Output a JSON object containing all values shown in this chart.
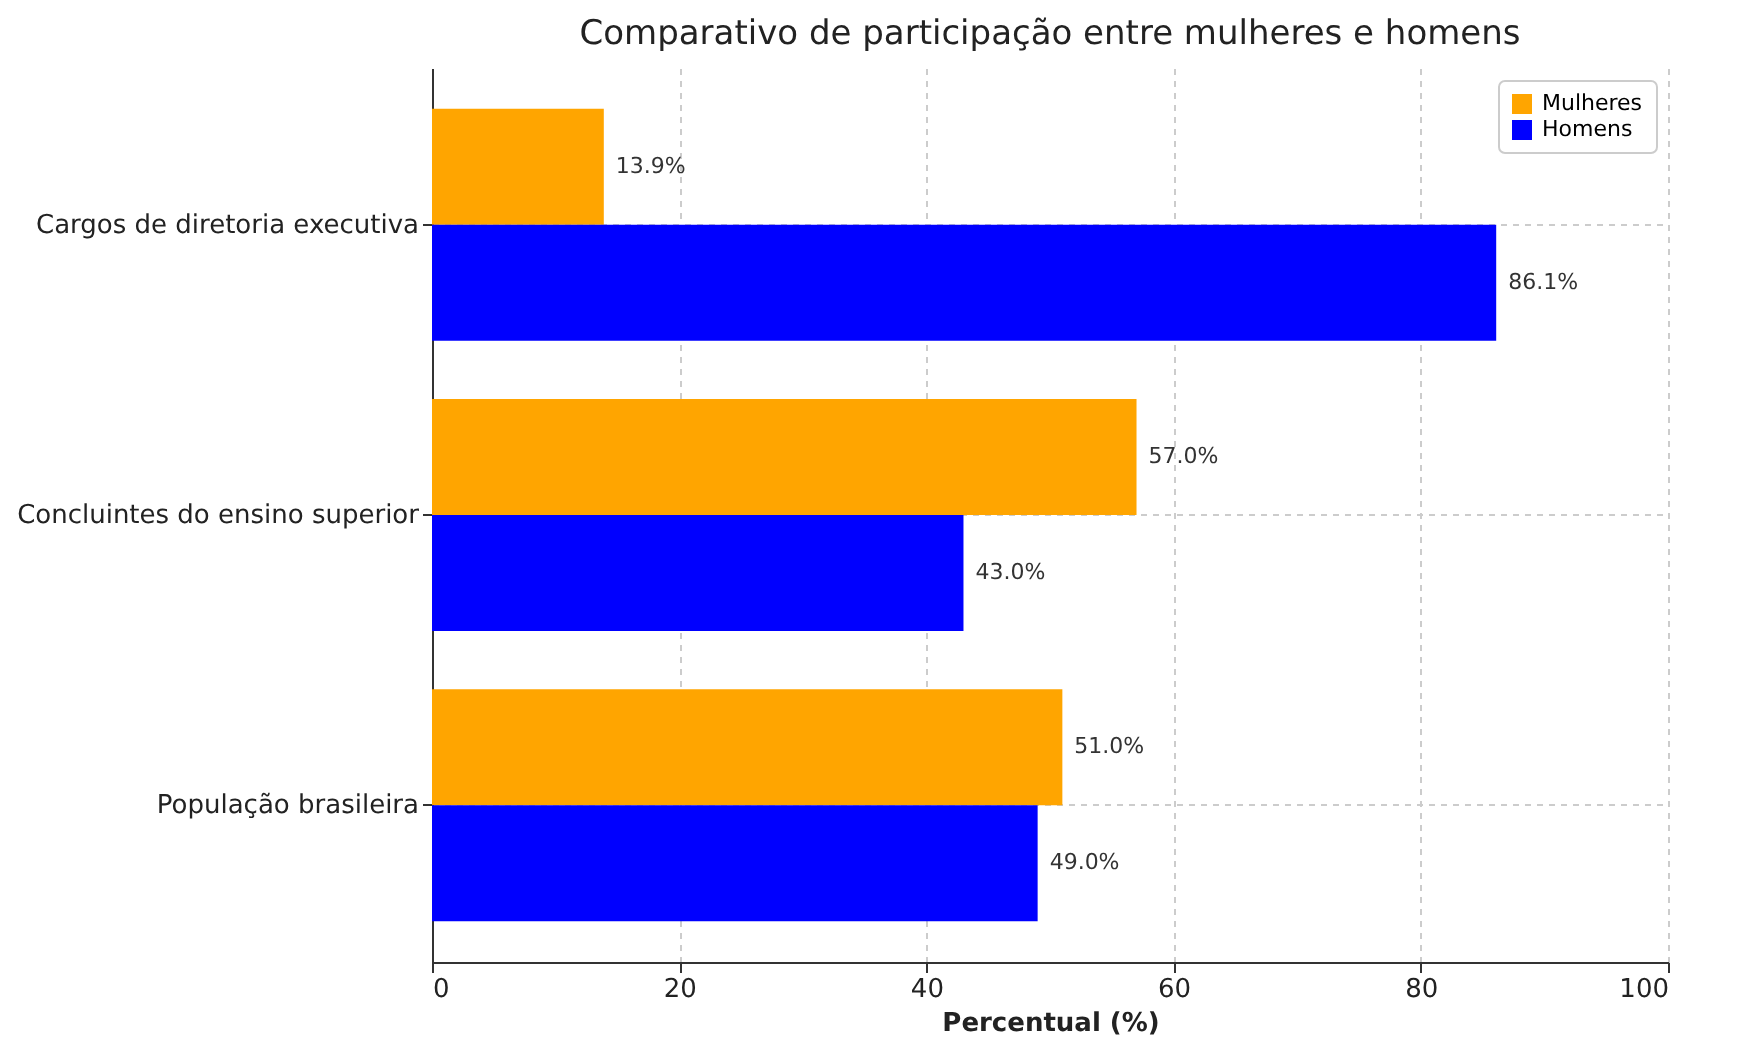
{
  "chart_data": {
    "type": "bar",
    "orientation": "horizontal",
    "title": "Comparativo de participação entre mulheres e homens",
    "xlabel": "Percentual (%)",
    "categories": [
      "Cargos de diretoria executiva",
      "Concluintes do ensino superior",
      "População brasileira"
    ],
    "series": [
      {
        "name": "Mulheres",
        "color": "#ffa500",
        "values": [
          13.9,
          57.0,
          51.0
        ],
        "value_labels": [
          "13.9%",
          "57.0%",
          "51.0%"
        ]
      },
      {
        "name": "Homens",
        "color": "#0000ff",
        "values": [
          86.1,
          43.0,
          49.0
        ],
        "value_labels": [
          "86.1%",
          "43.0%",
          "49.0%"
        ]
      }
    ],
    "xlim": [
      0,
      100
    ],
    "xticks": [
      0,
      20,
      40,
      60,
      80,
      100
    ],
    "grid": true,
    "legend": "top right"
  }
}
